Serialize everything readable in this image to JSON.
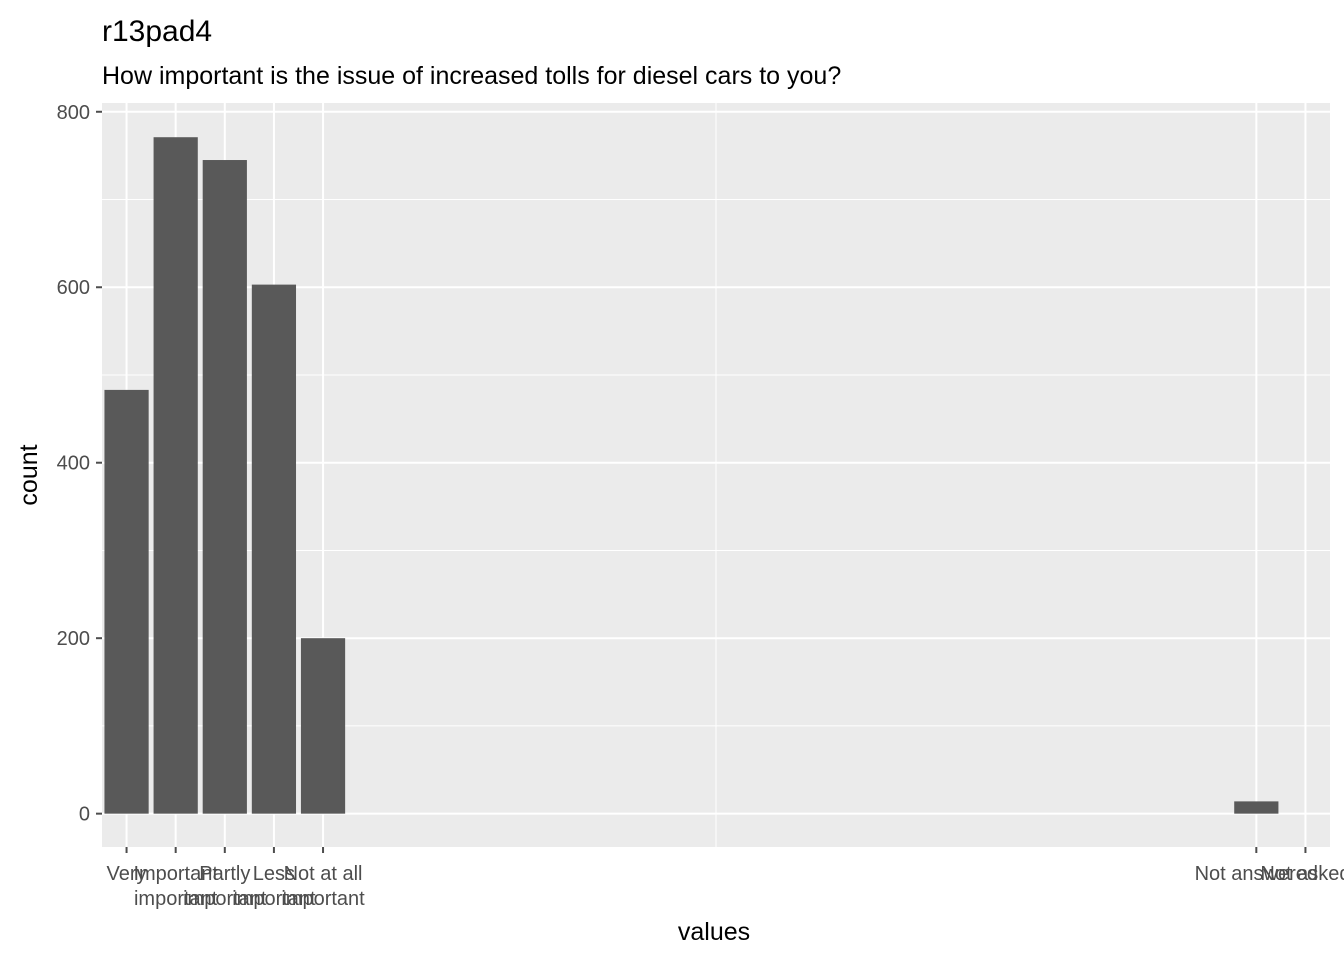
{
  "chart_data": {
    "type": "bar",
    "title": "r13pad4",
    "subtitle": "How important is the issue of increased tolls for diesel cars to you?",
    "xlabel": "values",
    "ylabel": "count",
    "ylim": [
      -38,
      810
    ],
    "xlim": [
      -0.5,
      24.5
    ],
    "yticks": [
      0,
      200,
      400,
      600,
      800
    ],
    "categories": [
      {
        "label": "Very important",
        "x": 0,
        "value": 483
      },
      {
        "label": "Important",
        "x": 1,
        "value": 771
      },
      {
        "label": "Partly important",
        "x": 2,
        "value": 745
      },
      {
        "label": "Less important",
        "x": 3,
        "value": 603
      },
      {
        "label": "Not at all important",
        "x": 4,
        "value": 200
      },
      {
        "label": "Not answered",
        "x": 23,
        "value": 14
      },
      {
        "label": "Not asked",
        "x": 24,
        "value": 0
      }
    ],
    "tick_labels": [
      {
        "x": 0,
        "lines": [
          "Very"
        ]
      },
      {
        "x": 1,
        "lines": [
          "Important",
          "important"
        ]
      },
      {
        "x": 2,
        "lines": [
          "Partly",
          "important"
        ]
      },
      {
        "x": 3,
        "lines": [
          "Less",
          "important"
        ]
      },
      {
        "x": 4,
        "lines": [
          "Not at all",
          "important"
        ]
      },
      {
        "x": 23,
        "lines": [
          "Not answered"
        ]
      },
      {
        "x": 24,
        "lines": [
          "Not asked"
        ]
      }
    ],
    "colors": {
      "panel": "#ebebeb",
      "grid": "#ffffff",
      "bar": "#595959",
      "tick": "#4d4d4d"
    }
  }
}
